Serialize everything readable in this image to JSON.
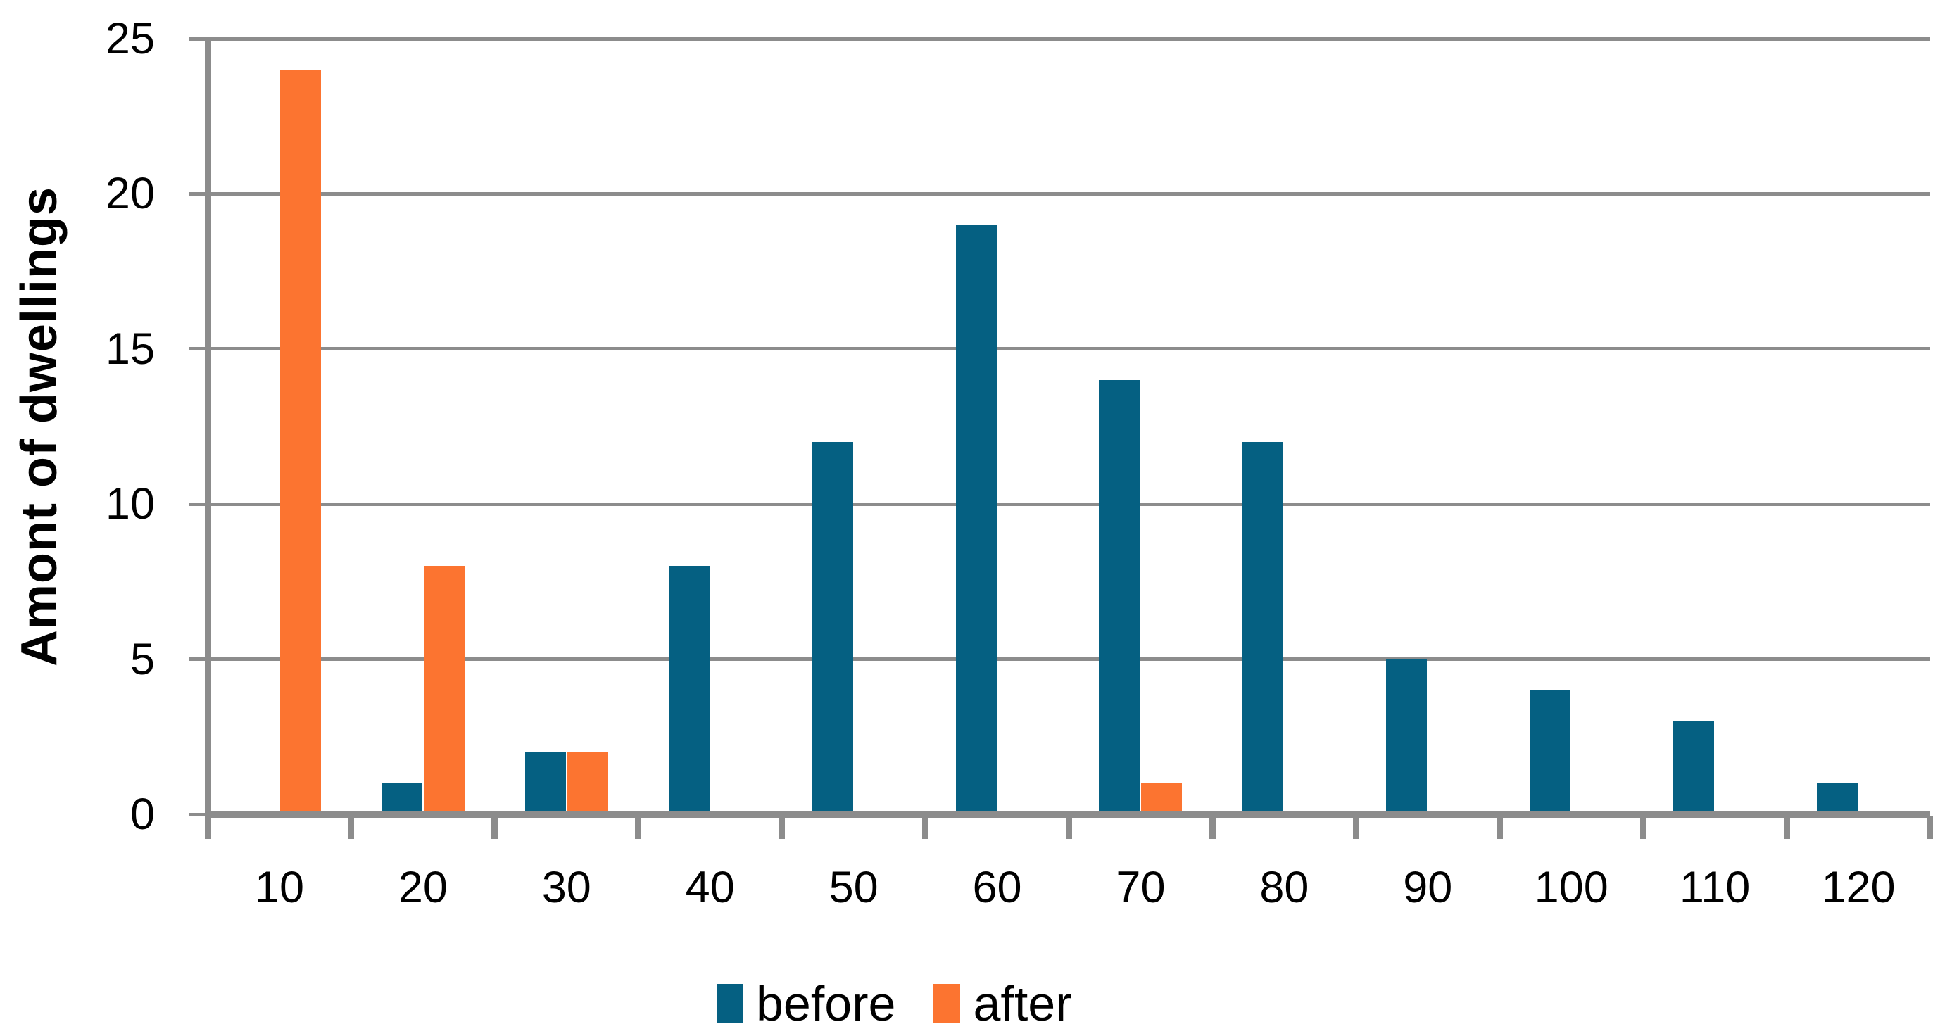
{
  "chart_data": {
    "type": "bar",
    "categories": [
      "10",
      "20",
      "30",
      "40",
      "50",
      "60",
      "70",
      "80",
      "90",
      "100",
      "110",
      "120"
    ],
    "series": [
      {
        "name": "before",
        "color": "#056082",
        "values": [
          0,
          1,
          2,
          8,
          12,
          19,
          14,
          12,
          5,
          4,
          3,
          1
        ]
      },
      {
        "name": "after",
        "color": "#FC7430",
        "values": [
          24,
          8,
          2,
          0,
          0,
          0,
          1,
          0,
          0,
          0,
          0,
          0
        ]
      }
    ],
    "title": "",
    "xlabel": "",
    "ylabel": "Amont of dwellings",
    "ylim": [
      0,
      25
    ],
    "ytick_interval": 5,
    "ytick_labels": [
      "0",
      "5",
      "10",
      "15",
      "20",
      "25"
    ],
    "grid": "horizontal",
    "gridline_color": "#8c8c8c",
    "axis_color": "#8c8c8c",
    "text_color": "#000000",
    "legend_position": "bottom-center",
    "legend_entries": [
      "before",
      "after"
    ]
  }
}
